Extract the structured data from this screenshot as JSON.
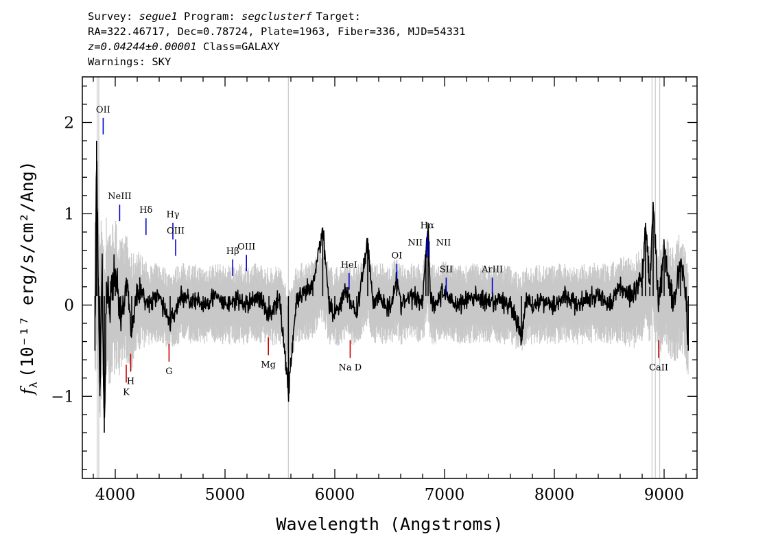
{
  "header": {
    "survey_label": "Survey:",
    "survey": "segue1",
    "program_label": "Program:",
    "program": "segclusterf",
    "target_label": "Target:",
    "line2": "RA=322.46717, Dec=0.78724, Plate=1963, Fiber=336, MJD=54331",
    "redshift": "z=0.04244±0.00001",
    "class_text": "Class=GALAXY",
    "warnings": "Warnings: SKY"
  },
  "chart_data": {
    "type": "line",
    "xlabel": "Wavelength (Angstroms)",
    "ylabel": "(10⁻¹⁷ erg/s/cm²/Ang)",
    "ylabel_symbol": "f",
    "ylabel_subscript": "λ",
    "xlim": [
      3700,
      9300
    ],
    "ylim": [
      -1.9,
      2.5
    ],
    "xticks": [
      4000,
      5000,
      6000,
      7000,
      8000,
      9000
    ],
    "ytick_labels": [
      "−1",
      "0",
      "1",
      "2"
    ],
    "ytick_values": [
      -1,
      0,
      1,
      2
    ],
    "series": [
      {
        "role": "flux",
        "color": "#000000",
        "x": [
          3815,
          3830,
          3845,
          3860,
          3880,
          3900,
          3920,
          3950,
          4000,
          4050,
          4100,
          4150,
          4200,
          4300,
          4400,
          4500,
          4600,
          4700,
          4800,
          4900,
          5000,
          5100,
          5200,
          5300,
          5400,
          5500,
          5577,
          5650,
          5700,
          5800,
          5890,
          5950,
          6000,
          6100,
          6200,
          6300,
          6350,
          6400,
          6500,
          6563,
          6600,
          6700,
          6800,
          6830,
          6850,
          6870,
          6900,
          7000,
          7100,
          7200,
          7300,
          7400,
          7500,
          7600,
          7700,
          7750,
          7800,
          7900,
          8000,
          8100,
          8200,
          8300,
          8400,
          8500,
          8600,
          8700,
          8800,
          8830,
          8870,
          8900,
          8950,
          9000,
          9050,
          9100,
          9150,
          9200,
          9220
        ],
        "y": [
          -0.5,
          1.8,
          0.3,
          -1.0,
          0.5,
          -1.4,
          0.2,
          0.0,
          0.4,
          -0.2,
          0.3,
          -0.3,
          0.2,
          0.0,
          0.1,
          -0.2,
          0.1,
          0.05,
          0.0,
          0.1,
          0.0,
          0.05,
          0.0,
          0.1,
          -0.1,
          0.05,
          -0.95,
          0.05,
          0.1,
          0.2,
          0.85,
          0.0,
          -0.1,
          0.15,
          -0.1,
          0.7,
          0.0,
          0.1,
          -0.05,
          0.3,
          0.0,
          0.1,
          0.05,
          0.6,
          0.9,
          0.1,
          0.0,
          0.15,
          0.0,
          0.05,
          0.1,
          0.0,
          0.05,
          0.0,
          -0.35,
          0.1,
          0.0,
          0.05,
          0.0,
          0.1,
          0.0,
          0.05,
          0.1,
          0.0,
          0.2,
          0.1,
          0.3,
          0.9,
          0.2,
          1.1,
          0.0,
          0.6,
          0.2,
          0.0,
          0.5,
          0.1,
          -0.5
        ]
      },
      {
        "role": "noise",
        "color": "#c8c8c8",
        "sigma_at_blue": 0.55,
        "sigma_mid": 0.22,
        "sigma_at_red": 0.35
      }
    ],
    "emission_lines": [
      {
        "label": "OII",
        "x": 3890,
        "color": "#0000cc"
      },
      {
        "label": "NeIII",
        "x": 4040,
        "color": "#0000cc"
      },
      {
        "label": "Hδ",
        "x": 4280,
        "color": "#0000cc"
      },
      {
        "label": "Hγ",
        "x": 4525,
        "color": "#0000cc"
      },
      {
        "label": "OIII",
        "x": 4550,
        "color": "#0000cc"
      },
      {
        "label": "Hβ",
        "x": 5070,
        "color": "#0000cc"
      },
      {
        "label": "OIII",
        "x": 5195,
        "color": "#0000cc"
      },
      {
        "label": "HeI",
        "x": 6130,
        "color": "#0000cc"
      },
      {
        "label": "OI",
        "x": 6565,
        "color": "#0000cc"
      },
      {
        "label": "NII",
        "x": 6838,
        "color": "#0000cc"
      },
      {
        "label": "Hα",
        "x": 6842,
        "color": "#0000cc"
      },
      {
        "label": "NII",
        "x": 6860,
        "color": "#0000cc"
      },
      {
        "label": "SII",
        "x": 7015,
        "color": "#0000cc"
      },
      {
        "label": "ArIII",
        "x": 7435,
        "color": "#0000cc"
      }
    ],
    "absorption_lines": [
      {
        "label": "K",
        "x": 4100,
        "color": "#cc0000"
      },
      {
        "label": "H",
        "x": 4140,
        "color": "#cc0000"
      },
      {
        "label": "G",
        "x": 4490,
        "color": "#cc0000"
      },
      {
        "label": "Mg",
        "x": 5395,
        "color": "#cc0000"
      },
      {
        "label": "Na D",
        "x": 6140,
        "color": "#cc0000"
      },
      {
        "label": "CaII",
        "x": 8950,
        "color": "#cc0000"
      }
    ]
  }
}
